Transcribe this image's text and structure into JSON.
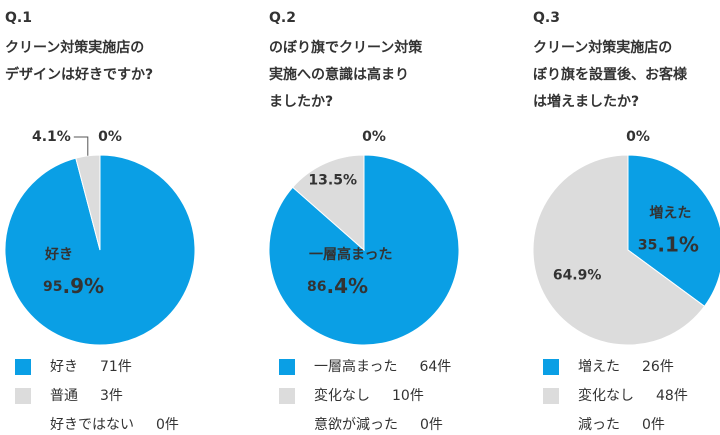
{
  "chart_data": [
    {
      "type": "pie",
      "title": "Q.1",
      "subtitle": [
        "クリーン対策実施店の",
        "デザインは好きですか?"
      ],
      "categories": [
        "好き",
        "普通",
        "好きではない"
      ],
      "values": [
        95.9,
        4.1,
        0
      ],
      "value_labels": [
        "95.9%",
        "4.1%",
        "0%"
      ],
      "counts": [
        71,
        3,
        0
      ],
      "count_labels": [
        "71件",
        "3件",
        "0件"
      ],
      "colors": [
        "#0a9fe5",
        "#dcdcdc",
        "#dcdcdc"
      ]
    },
    {
      "type": "pie",
      "title": "Q.2",
      "subtitle": [
        "のぼり旗でクリーン対策",
        "実施への意識は高まり",
        "ましたか?"
      ],
      "categories": [
        "一層高まった",
        "変化なし",
        "意欲が減った"
      ],
      "values": [
        86.4,
        13.5,
        0
      ],
      "value_labels": [
        "86.4%",
        "13.5%",
        "0%"
      ],
      "counts": [
        64,
        10,
        0
      ],
      "count_labels": [
        "64件",
        "10件",
        "0件"
      ],
      "colors": [
        "#0a9fe5",
        "#dcdcdc",
        "#dcdcdc"
      ]
    },
    {
      "type": "pie",
      "title": "Q.3",
      "subtitle": [
        "クリーン対策実施店の",
        "ぼり旗を設置後、お客様",
        "は増えましたか?"
      ],
      "categories": [
        "増えた",
        "変化なし",
        "減った"
      ],
      "values": [
        35.1,
        64.9,
        0
      ],
      "value_labels": [
        "35.1%",
        "64.9%",
        "0%"
      ],
      "counts": [
        26,
        48,
        0
      ],
      "count_labels": [
        "26件",
        "48件",
        "0件"
      ],
      "colors": [
        "#0a9fe5",
        "#dcdcdc",
        "#dcdcdc"
      ]
    }
  ]
}
